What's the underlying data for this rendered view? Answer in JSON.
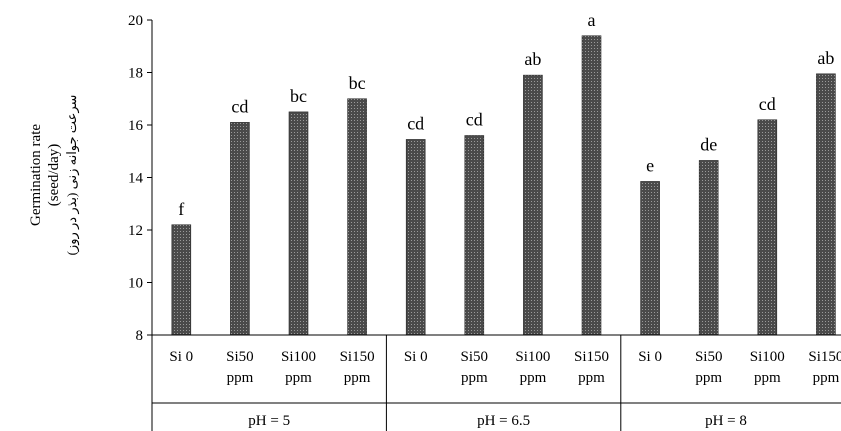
{
  "chart_data": {
    "type": "bar",
    "ylabel_lines": [
      "Germination rate",
      "(seed/day)",
      "سرعت جوانه زنی (بذر در روز)"
    ],
    "ylim": [
      8,
      20
    ],
    "yticks": [
      8,
      10,
      12,
      14,
      16,
      18,
      20
    ],
    "grid": false,
    "bar_color": "#3d3d3d",
    "groups": [
      {
        "label": "pH = 5",
        "bars": [
          {
            "cat1": "Si 0",
            "cat2": "",
            "value": 12.2,
            "letter": "f"
          },
          {
            "cat1": "Si50",
            "cat2": "ppm",
            "value": 16.1,
            "letter": "cd"
          },
          {
            "cat1": "Si100",
            "cat2": "ppm",
            "value": 16.5,
            "letter": "bc"
          },
          {
            "cat1": "Si150",
            "cat2": "ppm",
            "value": 17.0,
            "letter": "bc"
          }
        ]
      },
      {
        "label": "pH = 6.5",
        "bars": [
          {
            "cat1": "Si 0",
            "cat2": "",
            "value": 15.45,
            "letter": "cd"
          },
          {
            "cat1": "Si50",
            "cat2": "ppm",
            "value": 15.6,
            "letter": "cd"
          },
          {
            "cat1": "Si100",
            "cat2": "ppm",
            "value": 17.9,
            "letter": "ab"
          },
          {
            "cat1": "Si150",
            "cat2": "ppm",
            "value": 19.4,
            "letter": "a"
          }
        ]
      },
      {
        "label": "pH = 8",
        "bars": [
          {
            "cat1": "Si 0",
            "cat2": "",
            "value": 13.85,
            "letter": "e"
          },
          {
            "cat1": "Si50",
            "cat2": "ppm",
            "value": 14.65,
            "letter": "de"
          },
          {
            "cat1": "Si100",
            "cat2": "ppm",
            "value": 16.2,
            "letter": "cd"
          },
          {
            "cat1": "Si150",
            "cat2": "ppm",
            "value": 17.95,
            "letter": "ab"
          }
        ]
      }
    ]
  }
}
